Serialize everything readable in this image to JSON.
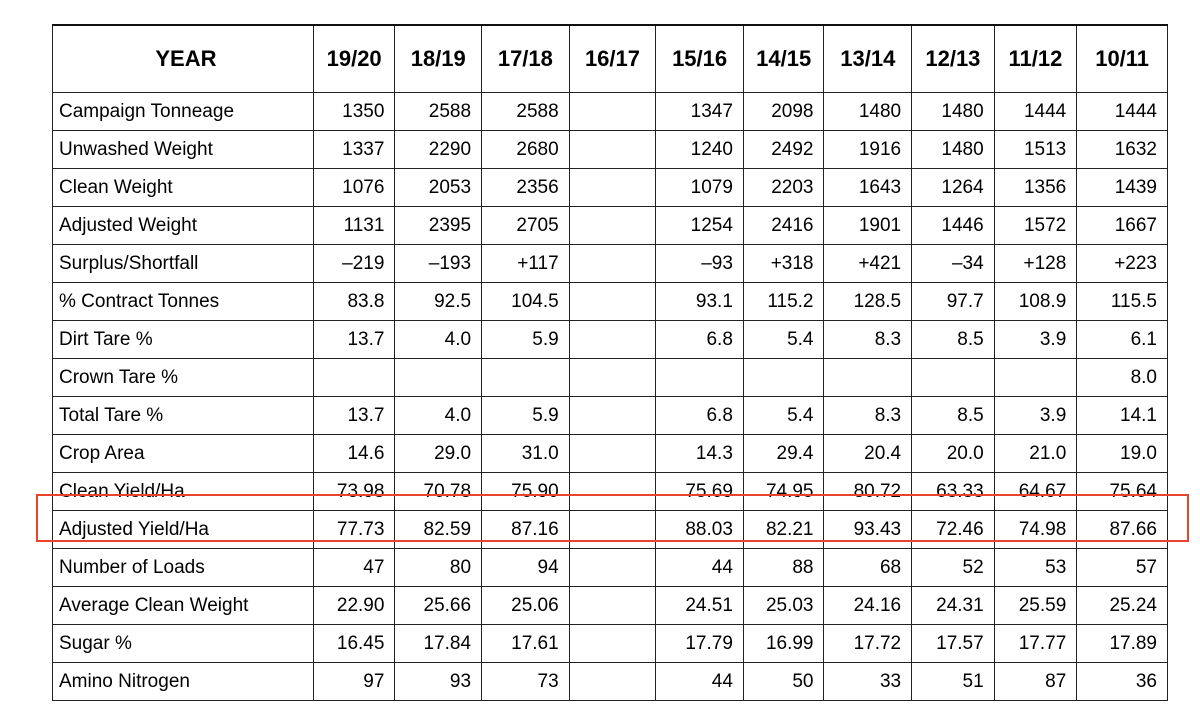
{
  "table": {
    "corner_label": "YEAR",
    "columns": [
      "19/20",
      "18/19",
      "17/18",
      "16/17",
      "15/16",
      "14/15",
      "13/14",
      "12/13",
      "11/12",
      "10/11"
    ],
    "rows": [
      {
        "label": "Campaign Tonneage",
        "values": [
          "1350",
          "2588",
          "2588",
          "",
          "1347",
          "2098",
          "1480",
          "1480",
          "1444",
          "1444"
        ]
      },
      {
        "label": "Unwashed Weight",
        "values": [
          "1337",
          "2290",
          "2680",
          "",
          "1240",
          "2492",
          "1916",
          "1480",
          "1513",
          "1632"
        ]
      },
      {
        "label": "Clean Weight",
        "values": [
          "1076",
          "2053",
          "2356",
          "",
          "1079",
          "2203",
          "1643",
          "1264",
          "1356",
          "1439"
        ]
      },
      {
        "label": "Adjusted Weight",
        "values": [
          "1131",
          "2395",
          "2705",
          "",
          "1254",
          "2416",
          "1901",
          "1446",
          "1572",
          "1667"
        ]
      },
      {
        "label": "Surplus/Shortfall",
        "values": [
          "–219",
          "–193",
          "+117",
          "",
          "–93",
          "+318",
          "+421",
          "–34",
          "+128",
          "+223"
        ]
      },
      {
        "label": "% Contract Tonnes",
        "values": [
          "83.8",
          "92.5",
          "104.5",
          "",
          "93.1",
          "115.2",
          "128.5",
          "97.7",
          "108.9",
          "115.5"
        ]
      },
      {
        "label": "Dirt Tare %",
        "values": [
          "13.7",
          "4.0",
          "5.9",
          "",
          "6.8",
          "5.4",
          "8.3",
          "8.5",
          "3.9",
          "6.1"
        ]
      },
      {
        "label": "Crown Tare %",
        "values": [
          "",
          "",
          "",
          "",
          "",
          "",
          "",
          "",
          "",
          "8.0"
        ]
      },
      {
        "label": "Total Tare %",
        "values": [
          "13.7",
          "4.0",
          "5.9",
          "",
          "6.8",
          "5.4",
          "8.3",
          "8.5",
          "3.9",
          "14.1"
        ]
      },
      {
        "label": "Crop Area",
        "values": [
          "14.6",
          "29.0",
          "31.0",
          "",
          "14.3",
          "29.4",
          "20.4",
          "20.0",
          "21.0",
          "19.0"
        ]
      },
      {
        "label": "Clean Yield/Ha",
        "values": [
          "73.98",
          "70.78",
          "75.90",
          "",
          "75.69",
          "74.95",
          "80.72",
          "63.33",
          "64.67",
          "75.64"
        ]
      },
      {
        "label": "Adjusted Yield/Ha",
        "values": [
          "77.73",
          "82.59",
          "87.16",
          "",
          "88.03",
          "82.21",
          "93.43",
          "72.46",
          "74.98",
          "87.66"
        ],
        "highlighted": true
      },
      {
        "label": "Number of Loads",
        "values": [
          "47",
          "80",
          "94",
          "",
          "44",
          "88",
          "68",
          "52",
          "53",
          "57"
        ]
      },
      {
        "label": "Average Clean Weight",
        "values": [
          "22.90",
          "25.66",
          "25.06",
          "",
          "24.51",
          "25.03",
          "24.16",
          "24.31",
          "25.59",
          "25.24"
        ]
      },
      {
        "label": "Sugar %",
        "values": [
          "16.45",
          "17.84",
          "17.61",
          "",
          "17.79",
          "16.99",
          "17.72",
          "17.57",
          "17.77",
          "17.89"
        ]
      },
      {
        "label": "Amino Nitrogen",
        "values": [
          "97",
          "93",
          "73",
          "",
          "44",
          "50",
          "33",
          "51",
          "87",
          "36"
        ]
      }
    ]
  },
  "colors": {
    "highlight_border": "#e8432b",
    "grid_line": "#222222",
    "text": "#000000",
    "background": "#ffffff"
  }
}
